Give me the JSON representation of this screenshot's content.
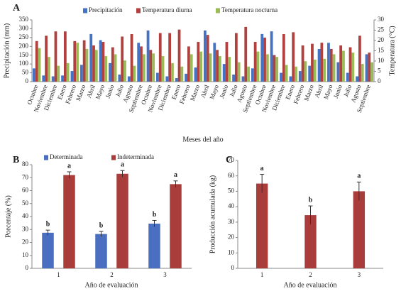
{
  "chart_data": [
    {
      "type": "bar",
      "panel": "A",
      "x_label": "Meses del año",
      "y_label": "Precipitación (mm)",
      "y2_label": "Temperatura (°C)",
      "categories": [
        "Octubre",
        "Noviembre",
        "Diciembre",
        "Enero",
        "Febrero",
        "Marzo",
        "Abril",
        "Mayo",
        "Junio",
        "Julio",
        "Agosto",
        "Septiembre",
        "Octubre",
        "Noviembre",
        "Diciembre",
        "Enero",
        "Febrero",
        "Marzo",
        "Abril",
        "Mayo",
        "Junio",
        "Julio",
        "Agosto",
        "Septiembre",
        "Octubre",
        "Noviembre",
        "Diciembre",
        "Enero",
        "Febrero",
        "Marzo",
        "Abril",
        "Mayo",
        "Junio",
        "Julio",
        "Agosto",
        "Septiembre"
      ],
      "series": [
        {
          "name": "Precipitación",
          "color": "#4472c4",
          "values": [
            75,
            35,
            30,
            35,
            60,
            95,
            270,
            235,
            105,
            40,
            30,
            220,
            290,
            50,
            30,
            20,
            45,
            80,
            290,
            220,
            100,
            40,
            30,
            75,
            270,
            285,
            50,
            30,
            60,
            90,
            185,
            220,
            110,
            50,
            30,
            155
          ]
        },
        {
          "name": "Temperatura diurna",
          "color": "#b0413e",
          "axis": "y2",
          "values": [
            19.7,
            22.3,
            24.4,
            24.4,
            19.7,
            20.1,
            17.6,
            19.3,
            16.7,
            21.9,
            23.1,
            17.1,
            15.4,
            23.6,
            23.6,
            25.3,
            17.1,
            19.3,
            22.7,
            15.4,
            19.3,
            23.6,
            26.6,
            19.3,
            21.4,
            12.9,
            23.1,
            24.0,
            17.6,
            18.4,
            18.9,
            15.9,
            17.6,
            16.7,
            22.3,
            14.1
          ]
        },
        {
          "name": "Temperatura nocturna",
          "color": "#9bbb59",
          "axis": "y2",
          "values": [
            16.3,
            12.0,
            7.7,
            9.0,
            18.9,
            15.9,
            15.4,
            12.4,
            13.3,
            10.3,
            7.7,
            13.3,
            13.7,
            12.4,
            9.0,
            7.3,
            13.3,
            14.6,
            13.7,
            12.4,
            12.0,
            9.4,
            7.3,
            14.6,
            13.3,
            12.0,
            8.1,
            7.3,
            9.9,
            10.7,
            11.1,
            13.3,
            15.0,
            14.1,
            8.6,
            9.4
          ]
        }
      ],
      "ylim": [
        0,
        350
      ],
      "yticks": [
        0,
        50,
        100,
        150,
        200,
        250,
        300,
        350
      ],
      "y2lim": [
        0,
        30
      ],
      "y2ticks": [
        0,
        5,
        10,
        15,
        20,
        25,
        30
      ]
    },
    {
      "type": "bar",
      "panel": "B",
      "x_label": "Año de evaluación",
      "y_label": "Porcentaje (%)",
      "categories": [
        "1",
        "2",
        "3"
      ],
      "series": [
        {
          "name": "Determinada",
          "color": "#4a6fc0",
          "values": [
            27.5,
            26.5,
            34.5
          ],
          "errors": [
            2,
            2,
            2.5
          ],
          "letters": [
            "b",
            "b",
            "b"
          ]
        },
        {
          "name": "Indeterminada",
          "color": "#a93d3b",
          "values": [
            72,
            73,
            65
          ],
          "errors": [
            2.5,
            2.5,
            2.5
          ],
          "letters": [
            "a",
            "a",
            "a"
          ]
        }
      ],
      "ylim": [
        0,
        80
      ],
      "yticks": [
        0,
        10,
        20,
        30,
        40,
        50,
        60,
        70,
        80
      ]
    },
    {
      "type": "bar",
      "panel": "C",
      "x_label": "Año de evaluación",
      "y_label": "Producción acumulada (kg)",
      "categories": [
        "1",
        "2",
        "3"
      ],
      "color": "#a93d3b",
      "values": [
        55,
        34.5,
        50
      ],
      "errors": [
        6,
        6,
        6
      ],
      "letters": [
        "a",
        "b",
        "a"
      ],
      "ylim": [
        0,
        70
      ],
      "yticks": [
        0,
        10,
        20,
        30,
        40,
        50,
        60,
        70
      ]
    }
  ]
}
